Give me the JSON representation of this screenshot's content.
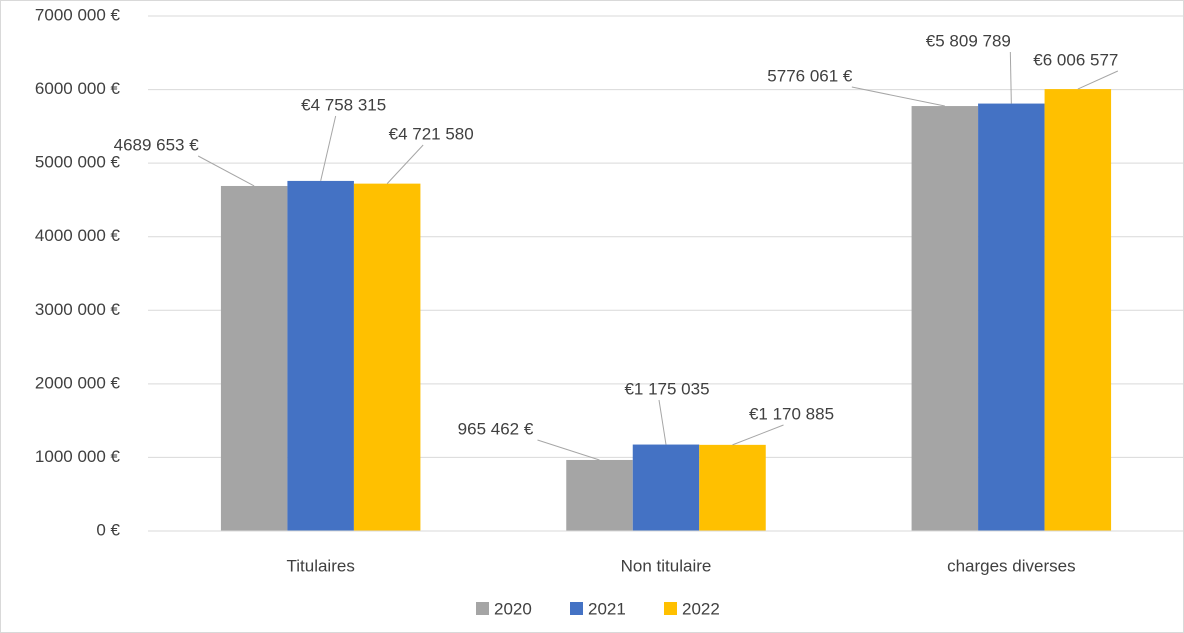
{
  "chart_data": {
    "type": "bar",
    "categories": [
      "Titulaires",
      "Non titulaire",
      "charges diverses"
    ],
    "series": [
      {
        "name": "2020",
        "color": "#a5a5a5",
        "values": [
          4689653,
          965462,
          5776061
        ],
        "value_labels": [
          "4689 653 €",
          "965 462 €",
          "5776 061 €"
        ]
      },
      {
        "name": "2021",
        "color": "#4472c4",
        "values": [
          4758315,
          1175035,
          5809789
        ],
        "value_labels": [
          "€4 758 315",
          "€1 175 035",
          "€5 809 789"
        ]
      },
      {
        "name": "2022",
        "color": "#ffc000",
        "values": [
          4721580,
          1170885,
          6006577
        ],
        "value_labels": [
          "€4 721 580",
          "€1 170 885",
          "€6 006 577"
        ]
      }
    ],
    "ylim": [
      0,
      7000000
    ],
    "yticks": [
      {
        "value": 0,
        "label": "0 €"
      },
      {
        "value": 1000000,
        "label": "1000 000 €"
      },
      {
        "value": 2000000,
        "label": "2000 000 €"
      },
      {
        "value": 3000000,
        "label": "3000 000 €"
      },
      {
        "value": 4000000,
        "label": "4000 000 €"
      },
      {
        "value": 5000000,
        "label": "5000 000 €"
      },
      {
        "value": 6000000,
        "label": "6000 000 €"
      },
      {
        "value": 7000000,
        "label": "7000 000 €"
      }
    ],
    "grid": true,
    "legend": "bottom"
  }
}
